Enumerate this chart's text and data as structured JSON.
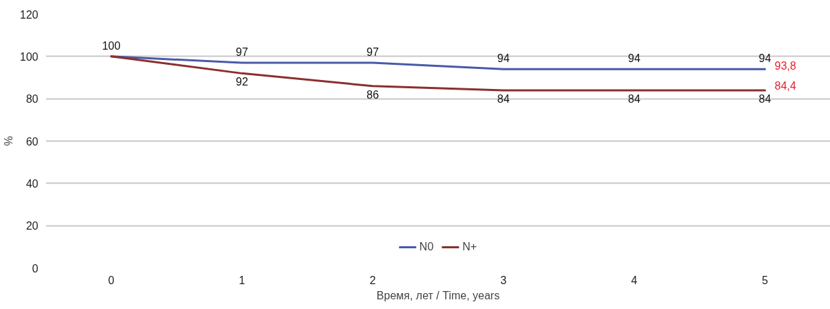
{
  "chart_data": {
    "type": "line",
    "xlabel": "Время, лет / Time, years",
    "ylabel": "%",
    "categories": [
      "0",
      "1",
      "2",
      "3",
      "4",
      "5"
    ],
    "series": [
      {
        "name": "N0",
        "color": "#4a5aa8",
        "values": [
          100,
          97,
          97,
          94,
          94,
          94
        ],
        "value_labels": [
          "100",
          "97",
          "97",
          "94",
          "94",
          "94"
        ]
      },
      {
        "name": "N+",
        "color": "#8b2f2f",
        "values": [
          100,
          92,
          86,
          84,
          84,
          84
        ],
        "value_labels": [
          null,
          "92",
          "86",
          "84",
          "84",
          "84"
        ]
      }
    ],
    "ylim": [
      0,
      120
    ],
    "yticks": [
      0,
      20,
      40,
      60,
      80,
      100,
      120
    ],
    "grid": "y",
    "legend": "bottom",
    "marker": "none",
    "line_style": "solid",
    "annotations": [
      {
        "text": "93,8",
        "x": "5",
        "y": 93.8
      },
      {
        "text": "84,4",
        "x": "5",
        "y": 84.4
      }
    ]
  }
}
